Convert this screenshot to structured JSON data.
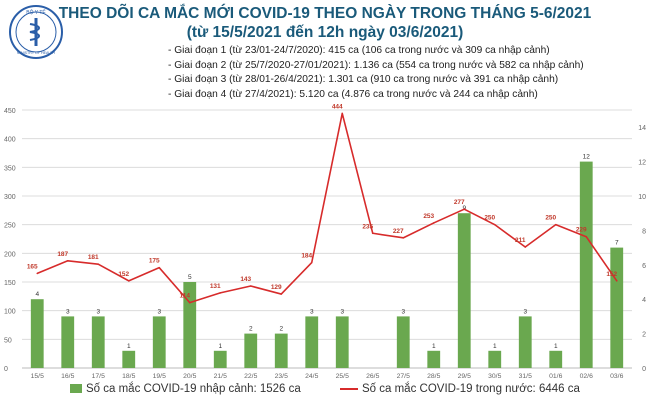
{
  "header": {
    "title_line1": "THEO DÕI CA MẮC MỚI COVID-19 THEO NGÀY TRONG THÁNG 5-6/2021",
    "title_line2": "(từ 15/5/2021 đến 12h ngày 03/6/2021)",
    "logo_text_top": "BỘ Y TẾ",
    "logo_text_bottom": "MINISTRY OF HEALTH"
  },
  "phases": [
    "- Giai đoạn 1 (từ 23/01-24/7/2020): 415 ca (106 ca trong nước và 309 ca nhập cảnh)",
    "- Giai đoạn 2 (từ 25/7/2020-27/01/2021): 1.136 ca (554 ca trong nước và 582 ca nhập cảnh)",
    "- Giai đoạn 3 (từ 28/01-26/4/2021): 1.301 ca (910 ca trong nước và 391 ca nhập cảnh)",
    "- Giai đoạn 4 (từ 27/4/2021): 5.120 ca (4.876 ca trong nước và 244 ca nhập cảnh)"
  ],
  "legend": {
    "bar_label": "Số ca mắc COVID-19 nhập cảnh: 1526 ca",
    "line_label": "Số ca mắc COVID-19 trong nước: 6446 ca"
  },
  "colors": {
    "bar": "#6aa84f",
    "line": "#d72b2b",
    "title": "#1a5a7a",
    "grid": "#dcdcdc",
    "axis_text": "#666666"
  },
  "chart_data": {
    "type": "bar+line",
    "categories": [
      "15/5",
      "16/5",
      "17/5",
      "18/5",
      "19/5",
      "20/5",
      "21/5",
      "22/5",
      "23/5",
      "24/5",
      "25/5",
      "26/5",
      "27/5",
      "28/5",
      "29/5",
      "30/5",
      "31/5",
      "01/6",
      "02/6",
      "03/6"
    ],
    "series": [
      {
        "name": "Số ca mắc COVID-19 nhập cảnh: 1526 ca",
        "type": "bar",
        "axis": "right",
        "values": [
          4,
          3,
          3,
          1,
          3,
          5,
          1,
          2,
          2,
          3,
          3,
          null,
          3,
          1,
          9,
          1,
          3,
          1,
          12,
          7
        ]
      },
      {
        "name": "Số ca mắc COVID-19 trong nước: 6446 ca",
        "type": "line",
        "axis": "left",
        "values": [
          165,
          187,
          181,
          152,
          175,
          114,
          131,
          143,
          129,
          184,
          444,
          235,
          227,
          253,
          277,
          250,
          211,
          250,
          229,
          152
        ]
      }
    ],
    "y_left": {
      "range": [
        0,
        450
      ],
      "ticks": [
        0,
        50,
        100,
        150,
        200,
        250,
        300,
        350,
        400,
        450
      ]
    },
    "y_right": {
      "range": [
        0,
        15
      ],
      "ticks": [
        0,
        2,
        4,
        6,
        8,
        10,
        12,
        14
      ]
    },
    "grid": true,
    "legend_position": "bottom"
  }
}
